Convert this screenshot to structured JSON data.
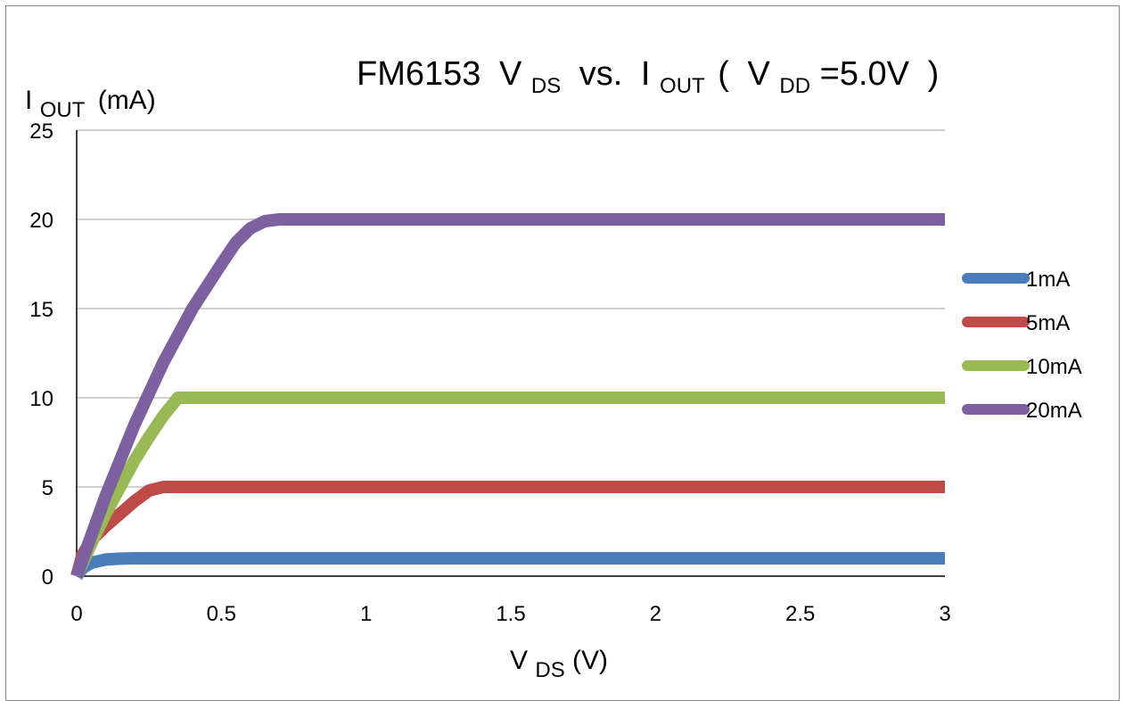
{
  "chart_data": {
    "type": "line",
    "title": {
      "prefix": "FM6153",
      "v1": "V",
      "v1_sub": "DS",
      "mid": "vs.",
      "i1": "I",
      "i1_sub": "OUT",
      "paren_open": "(",
      "v2": "V",
      "v2_sub": "DD",
      "value": "=5.0V",
      "paren_close": ")"
    },
    "ylabel": {
      "main": "I",
      "sub": "OUT",
      "unit": "(mA)"
    },
    "xlabel": {
      "main": "V",
      "sub": "DS",
      "unit": "(V)"
    },
    "xlim": [
      0,
      3
    ],
    "ylim": [
      0,
      25
    ],
    "x_ticks": [
      "0",
      "0.5",
      "1",
      "1.5",
      "2",
      "2.5",
      "3"
    ],
    "y_ticks": [
      "0",
      "5",
      "10",
      "15",
      "20",
      "25"
    ],
    "grid": "horizontal",
    "legend_position": "right",
    "series": [
      {
        "name": "1mA",
        "color": "#4a7ebb",
        "x": [
          0,
          0.02,
          0.05,
          0.1,
          0.15,
          0.2,
          0.3,
          3
        ],
        "y": [
          0,
          0.45,
          0.75,
          0.93,
          0.98,
          1.0,
          1.0,
          1.0
        ]
      },
      {
        "name": "5mA",
        "color": "#be4b48",
        "x": [
          0,
          0.02,
          0.05,
          0.1,
          0.15,
          0.2,
          0.25,
          0.3,
          0.35,
          3
        ],
        "y": [
          0,
          1.2,
          2.0,
          2.8,
          3.5,
          4.2,
          4.8,
          5.0,
          5.0,
          5.0
        ]
      },
      {
        "name": "10mA",
        "color": "#98b954",
        "x": [
          0,
          0.05,
          0.1,
          0.15,
          0.2,
          0.25,
          0.3,
          0.35,
          0.4,
          3
        ],
        "y": [
          0,
          1.8,
          3.5,
          5.0,
          6.5,
          7.8,
          9.0,
          10.0,
          10.0,
          10.0
        ]
      },
      {
        "name": "20mA",
        "color": "#7d60a0",
        "x": [
          0,
          0.1,
          0.2,
          0.3,
          0.4,
          0.5,
          0.55,
          0.6,
          0.65,
          0.7,
          0.75,
          3
        ],
        "y": [
          0,
          4.5,
          8.5,
          12.0,
          15.0,
          17.5,
          18.7,
          19.5,
          19.9,
          20.0,
          20.0,
          20.0
        ]
      }
    ]
  }
}
